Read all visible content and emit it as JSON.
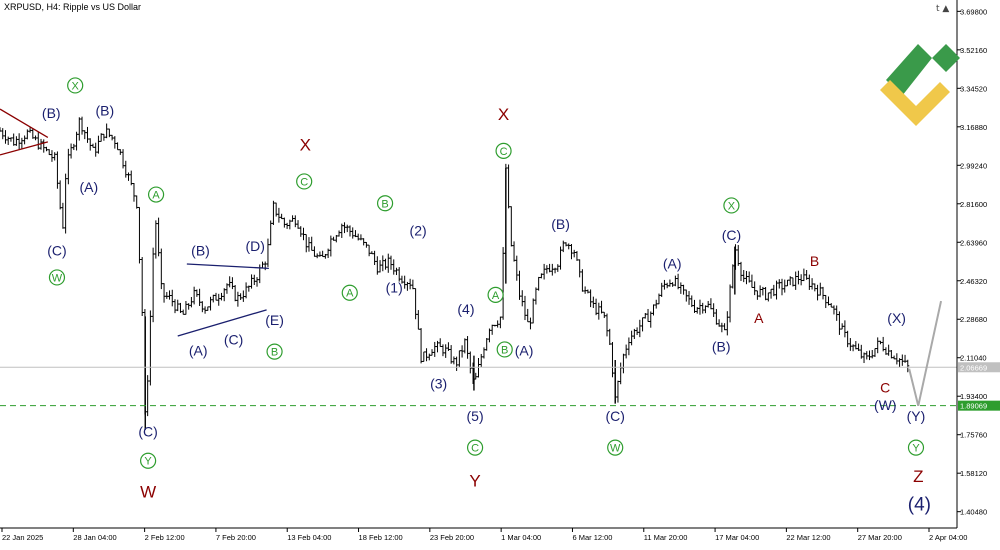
{
  "header": {
    "symbol_title": "XRPUSD, H4:  Ripple vs US Dollar",
    "corner_icons": [
      "t",
      "graduation-cap-icon"
    ]
  },
  "colors": {
    "candle": "#000000",
    "navy": "#1a1f6e",
    "green": "#2e9d2e",
    "darkred": "#8b0000",
    "dashed_level": "#2e9d2e",
    "logo_green": "#3a9a4a",
    "logo_yellow": "#f0c84a",
    "projection": "#a9a9a9"
  },
  "chart_data": {
    "type": "candlestick",
    "symbol": "XRPUSD",
    "timeframe": "H4",
    "y_ticks": [
      "3.69800",
      "3.52160",
      "3.34520",
      "3.16880",
      "2.99240",
      "2.81600",
      "2.63960",
      "2.46320",
      "2.28680",
      "2.11040",
      "1.93400",
      "1.75760",
      "1.58120",
      "1.40480"
    ],
    "ylim": [
      1.33,
      3.75
    ],
    "x_ticks": [
      "22 Jan 2025",
      "28 Jan 04:00",
      "2 Feb 12:00",
      "7 Feb 20:00",
      "13 Feb 04:00",
      "18 Feb 12:00",
      "23 Feb 20:00",
      "1 Mar 04:00",
      "6 Mar 12:00",
      "11 Mar 20:00",
      "17 Mar 04:00",
      "22 Mar 12:00",
      "27 Mar 20:00",
      "2 Apr 04:00"
    ],
    "price_tags": [
      {
        "value": 2.06669,
        "label": "2.06669",
        "style": "current"
      },
      {
        "value": 1.89069,
        "label": "1.89069",
        "style": "support-dashed"
      }
    ],
    "price_path": [
      [
        0,
        3.15
      ],
      [
        1.2,
        3.1
      ],
      [
        2.4,
        3.14
      ],
      [
        3.6,
        3.08
      ],
      [
        4.8,
        3.02
      ],
      [
        5.5,
        2.7
      ],
      [
        5.8,
        2.98
      ],
      [
        7.0,
        3.2
      ],
      [
        8.2,
        3.05
      ],
      [
        9.2,
        3.15
      ],
      [
        10.2,
        3.1
      ],
      [
        11.2,
        2.95
      ],
      [
        12.0,
        2.82
      ],
      [
        12.5,
        2.3
      ],
      [
        12.75,
        1.78
      ],
      [
        13.2,
        2.3
      ],
      [
        13.6,
        2.78
      ],
      [
        14.2,
        2.4
      ],
      [
        15.0,
        2.38
      ],
      [
        16.0,
        2.3
      ],
      [
        17.0,
        2.4
      ],
      [
        18.0,
        2.34
      ],
      [
        19.2,
        2.4
      ],
      [
        20.0,
        2.45
      ],
      [
        20.8,
        2.38
      ],
      [
        21.8,
        2.43
      ],
      [
        22.6,
        2.49
      ],
      [
        23.4,
        2.57
      ],
      [
        24.0,
        2.8
      ],
      [
        25.0,
        2.72
      ],
      [
        26.0,
        2.75
      ],
      [
        27.0,
        2.62
      ],
      [
        28.2,
        2.55
      ],
      [
        29.0,
        2.65
      ],
      [
        30.0,
        2.72
      ],
      [
        31.0,
        2.68
      ],
      [
        32.4,
        2.6
      ],
      [
        33.2,
        2.52
      ],
      [
        34.2,
        2.55
      ],
      [
        35.2,
        2.48
      ],
      [
        36.2,
        2.45
      ],
      [
        37.0,
        2.1
      ],
      [
        38.0,
        2.16
      ],
      [
        39.0,
        2.15
      ],
      [
        40.0,
        2.08
      ],
      [
        40.8,
        2.18
      ],
      [
        41.6,
        1.98
      ],
      [
        42.4,
        2.15
      ],
      [
        43.0,
        2.26
      ],
      [
        43.6,
        2.28
      ],
      [
        44.0,
        2.3
      ],
      [
        44.4,
        2.98
      ],
      [
        44.8,
        2.65
      ],
      [
        45.6,
        2.4
      ],
      [
        46.4,
        2.25
      ],
      [
        47.2,
        2.45
      ],
      [
        48.0,
        2.52
      ],
      [
        49.0,
        2.55
      ],
      [
        49.6,
        2.65
      ],
      [
        50.4,
        2.6
      ],
      [
        51.0,
        2.45
      ],
      [
        52.0,
        2.35
      ],
      [
        53.0,
        2.3
      ],
      [
        53.6,
        2.15
      ],
      [
        54.0,
        1.92
      ],
      [
        54.6,
        2.1
      ],
      [
        55.2,
        2.2
      ],
      [
        56.2,
        2.26
      ],
      [
        57.2,
        2.32
      ],
      [
        58.2,
        2.44
      ],
      [
        59.0,
        2.47
      ],
      [
        60.0,
        2.4
      ],
      [
        61.0,
        2.34
      ],
      [
        62.0,
        2.36
      ],
      [
        63.0,
        2.28
      ],
      [
        63.6,
        2.22
      ],
      [
        64.0,
        2.38
      ],
      [
        64.5,
        2.62
      ],
      [
        65.2,
        2.48
      ],
      [
        66.2,
        2.42
      ],
      [
        67.2,
        2.4
      ],
      [
        68.2,
        2.43
      ],
      [
        69.2,
        2.45
      ],
      [
        70.2,
        2.48
      ],
      [
        71.2,
        2.45
      ],
      [
        72.2,
        2.4
      ],
      [
        73.0,
        2.35
      ],
      [
        74.0,
        2.22
      ],
      [
        75.0,
        2.15
      ],
      [
        76.0,
        2.1
      ],
      [
        77.2,
        2.18
      ],
      [
        78.0,
        2.14
      ],
      [
        79.0,
        2.1
      ],
      [
        79.8,
        2.06
      ]
    ],
    "projection_path": [
      [
        79.8,
        2.06
      ],
      [
        80.6,
        1.89
      ],
      [
        82.6,
        2.37
      ]
    ],
    "trendlines": [
      {
        "color": "darkred",
        "points": [
          [
            0,
            3.25
          ],
          [
            4.2,
            3.12
          ]
        ]
      },
      {
        "color": "darkred",
        "points": [
          [
            0,
            3.04
          ],
          [
            4.2,
            3.1
          ]
        ]
      },
      {
        "color": "navy",
        "points": [
          [
            16.4,
            2.54
          ],
          [
            23.6,
            2.52
          ]
        ]
      },
      {
        "color": "navy",
        "points": [
          [
            15.6,
            2.21
          ],
          [
            23.4,
            2.33
          ]
        ]
      }
    ],
    "annotations": [
      {
        "text": "(B)",
        "color": "navy",
        "x": 4.5,
        "y": 3.21,
        "size": 14
      },
      {
        "text": "X",
        "color": "green",
        "circled": true,
        "x": 6.6,
        "y": 3.34,
        "size": 11
      },
      {
        "text": "(B)",
        "color": "navy",
        "x": 9.2,
        "y": 3.22,
        "size": 14
      },
      {
        "text": "(A)",
        "color": "navy",
        "x": 7.8,
        "y": 2.87,
        "size": 14
      },
      {
        "text": "(C)",
        "color": "navy",
        "x": 5.0,
        "y": 2.58,
        "size": 14
      },
      {
        "text": "W",
        "color": "green",
        "circled": true,
        "x": 5.0,
        "y": 2.46,
        "size": 11
      },
      {
        "text": "A",
        "color": "green",
        "circled": true,
        "x": 13.7,
        "y": 2.84,
        "size": 11
      },
      {
        "text": "(C)",
        "color": "navy",
        "x": 13.0,
        "y": 1.75,
        "size": 14
      },
      {
        "text": "Y",
        "color": "green",
        "circled": true,
        "x": 13.0,
        "y": 1.62,
        "size": 11
      },
      {
        "text": "W",
        "color": "darkred",
        "x": 13.0,
        "y": 1.47,
        "size": 17
      },
      {
        "text": "(B)",
        "color": "navy",
        "x": 17.6,
        "y": 2.58,
        "size": 14
      },
      {
        "text": "(D)",
        "color": "navy",
        "x": 22.4,
        "y": 2.6,
        "size": 14
      },
      {
        "text": "(A)",
        "color": "navy",
        "x": 17.4,
        "y": 2.12,
        "size": 14
      },
      {
        "text": "(C)",
        "color": "navy",
        "x": 20.5,
        "y": 2.17,
        "size": 14
      },
      {
        "text": "(E)",
        "color": "navy",
        "x": 24.1,
        "y": 2.26,
        "size": 14
      },
      {
        "text": "B",
        "color": "green",
        "circled": true,
        "x": 24.1,
        "y": 2.12,
        "size": 11
      },
      {
        "text": "X",
        "color": "darkred",
        "x": 26.8,
        "y": 3.06,
        "size": 17
      },
      {
        "text": "C",
        "color": "green",
        "circled": true,
        "x": 26.7,
        "y": 2.9,
        "size": 11
      },
      {
        "text": "B",
        "color": "green",
        "circled": true,
        "x": 33.8,
        "y": 2.8,
        "size": 11
      },
      {
        "text": "A",
        "color": "green",
        "circled": true,
        "x": 30.7,
        "y": 2.39,
        "size": 11
      },
      {
        "text": "(2)",
        "color": "navy",
        "x": 36.7,
        "y": 2.67,
        "size": 14
      },
      {
        "text": "(1)",
        "color": "navy",
        "x": 34.6,
        "y": 2.41,
        "size": 14
      },
      {
        "text": "(4)",
        "color": "navy",
        "x": 40.9,
        "y": 2.31,
        "size": 14
      },
      {
        "text": "(3)",
        "color": "navy",
        "x": 38.5,
        "y": 1.97,
        "size": 14
      },
      {
        "text": "(5)",
        "color": "navy",
        "x": 41.7,
        "y": 1.82,
        "size": 14
      },
      {
        "text": "C",
        "color": "green",
        "circled": true,
        "x": 41.7,
        "y": 1.68,
        "size": 11
      },
      {
        "text": "Y",
        "color": "darkred",
        "x": 41.7,
        "y": 1.52,
        "size": 17
      },
      {
        "text": "X",
        "color": "darkred",
        "x": 44.2,
        "y": 3.2,
        "size": 17
      },
      {
        "text": "C",
        "color": "green",
        "circled": true,
        "x": 44.2,
        "y": 3.04,
        "size": 11
      },
      {
        "text": "A",
        "color": "green",
        "circled": true,
        "x": 43.5,
        "y": 2.38,
        "size": 11
      },
      {
        "text": "B",
        "color": "green",
        "circled": true,
        "x": 44.3,
        "y": 2.13,
        "size": 11
      },
      {
        "text": "(A)",
        "color": "navy",
        "x": 46.0,
        "y": 2.12,
        "size": 14
      },
      {
        "text": "(B)",
        "color": "navy",
        "x": 49.2,
        "y": 2.7,
        "size": 14
      },
      {
        "text": "(C)",
        "color": "navy",
        "x": 54.0,
        "y": 1.82,
        "size": 14
      },
      {
        "text": "W",
        "color": "green",
        "circled": true,
        "x": 54.0,
        "y": 1.68,
        "size": 11
      },
      {
        "text": "(A)",
        "color": "navy",
        "x": 59.0,
        "y": 2.52,
        "size": 14
      },
      {
        "text": "X",
        "color": "green",
        "circled": true,
        "x": 64.2,
        "y": 2.79,
        "size": 11
      },
      {
        "text": "(C)",
        "color": "navy",
        "x": 64.2,
        "y": 2.65,
        "size": 14
      },
      {
        "text": "(B)",
        "color": "navy",
        "x": 63.3,
        "y": 2.14,
        "size": 14
      },
      {
        "text": "A",
        "color": "darkred",
        "x": 66.6,
        "y": 2.27,
        "size": 14
      },
      {
        "text": "B",
        "color": "darkred",
        "x": 71.5,
        "y": 2.53,
        "size": 14
      },
      {
        "text": "(X)",
        "color": "navy",
        "x": 78.7,
        "y": 2.27,
        "size": 14
      },
      {
        "text": "C",
        "color": "darkred",
        "x": 77.7,
        "y": 1.95,
        "size": 14
      },
      {
        "text": "(W)",
        "color": "navy",
        "x": 77.7,
        "y": 1.87,
        "size": 14
      },
      {
        "text": "(Y)",
        "color": "navy",
        "x": 80.4,
        "y": 1.82,
        "size": 14
      },
      {
        "text": "Y",
        "color": "green",
        "circled": true,
        "x": 80.4,
        "y": 1.68,
        "size": 11
      },
      {
        "text": "Z",
        "color": "darkred",
        "x": 80.6,
        "y": 1.54,
        "size": 17
      },
      {
        "text": "(4)",
        "color": "navy",
        "x": 80.7,
        "y": 1.41,
        "size": 19
      }
    ]
  }
}
